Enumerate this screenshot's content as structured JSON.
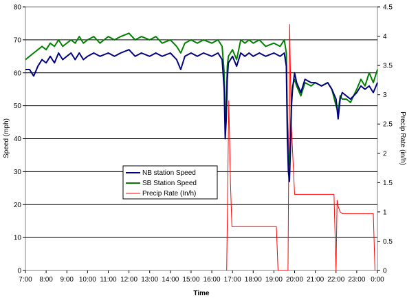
{
  "chart_data": {
    "type": "line",
    "title": "",
    "xlabel": "Time",
    "ylabel": "Speed (mph)",
    "y2label": "Precip Rate (in/h)",
    "ylim": [
      0,
      80
    ],
    "y2lim": [
      0,
      4.5
    ],
    "yticks": [
      0,
      10,
      20,
      30,
      40,
      50,
      60,
      70,
      80
    ],
    "y2ticks": [
      "0",
      "0.5",
      "1",
      "1.5",
      "2",
      "2.5",
      "3",
      "3.5",
      "4",
      "4.5"
    ],
    "xlim": [
      7,
      24
    ],
    "xtick_labels": [
      "7:00",
      "8:00",
      "9:00",
      "10:00",
      "11:00",
      "12:00",
      "13:00",
      "14:00",
      "15:00",
      "16:00",
      "17:00",
      "18:00",
      "19:00",
      "20:00",
      "21:00",
      "22:00",
      "23:00",
      "0:00"
    ],
    "grid": "horizontal",
    "legend_position": "left-center",
    "colors": {
      "nb": "#000080",
      "sb": "#008000",
      "precip": "#ff0000"
    },
    "series": [
      {
        "name": "NB station Speed",
        "axis": "left",
        "x": [
          7.0,
          7.2,
          7.4,
          7.6,
          7.8,
          8.0,
          8.2,
          8.4,
          8.6,
          8.8,
          9.0,
          9.2,
          9.4,
          9.6,
          9.8,
          10.0,
          10.3,
          10.6,
          11.0,
          11.3,
          11.6,
          12.0,
          12.3,
          12.6,
          13.0,
          13.3,
          13.6,
          14.0,
          14.3,
          14.5,
          14.7,
          15.0,
          15.3,
          15.6,
          16.0,
          16.3,
          16.5,
          16.6,
          16.65,
          16.7,
          16.75,
          16.8,
          16.9,
          17.0,
          17.2,
          17.4,
          17.6,
          17.8,
          18.0,
          18.3,
          18.6,
          19.0,
          19.3,
          19.5,
          19.6,
          19.65,
          19.7,
          19.75,
          19.8,
          19.85,
          19.9,
          20.0,
          20.1,
          20.3,
          20.5,
          20.8,
          21.0,
          21.3,
          21.6,
          21.8,
          22.0,
          22.1,
          22.2,
          22.3,
          22.5,
          22.7,
          23.0,
          23.2,
          23.4,
          23.6,
          23.8,
          24.0
        ],
        "values": [
          61,
          61,
          59,
          62,
          64,
          63,
          65,
          63,
          66,
          64,
          65,
          66,
          64,
          66,
          64,
          65,
          66,
          65,
          66,
          65,
          66,
          67,
          65,
          66,
          65,
          66,
          65,
          66,
          64,
          61,
          65,
          66,
          65,
          66,
          65,
          66,
          64,
          55,
          40,
          46,
          58,
          63,
          64,
          65,
          62,
          66,
          65,
          66,
          65,
          66,
          65,
          66,
          65,
          66,
          62,
          40,
          30,
          27,
          37,
          50,
          55,
          60,
          57,
          54,
          58,
          57,
          57,
          56,
          57,
          55,
          52,
          46,
          52,
          54,
          53,
          52,
          54,
          56,
          55,
          56,
          54,
          57
        ]
      },
      {
        "name": "SB Station Speed",
        "axis": "left",
        "x": [
          7.0,
          7.2,
          7.4,
          7.6,
          7.8,
          8.0,
          8.2,
          8.4,
          8.6,
          8.8,
          9.0,
          9.2,
          9.4,
          9.6,
          9.8,
          10.0,
          10.3,
          10.6,
          11.0,
          11.3,
          11.6,
          12.0,
          12.3,
          12.6,
          13.0,
          13.3,
          13.6,
          14.0,
          14.3,
          14.5,
          14.7,
          15.0,
          15.3,
          15.6,
          16.0,
          16.3,
          16.5,
          16.6,
          16.65,
          16.7,
          16.75,
          16.8,
          16.9,
          17.0,
          17.2,
          17.4,
          17.6,
          17.8,
          18.0,
          18.3,
          18.6,
          19.0,
          19.3,
          19.5,
          19.6,
          19.65,
          19.7,
          19.75,
          19.8,
          19.85,
          19.9,
          20.0,
          20.1,
          20.3,
          20.5,
          20.8,
          21.0,
          21.3,
          21.6,
          21.8,
          22.0,
          22.1,
          22.2,
          22.3,
          22.5,
          22.7,
          23.0,
          23.2,
          23.4,
          23.6,
          23.8,
          24.0
        ],
        "values": [
          64,
          65,
          66,
          67,
          68,
          67,
          69,
          68,
          70,
          68,
          69,
          70,
          69,
          71,
          69,
          70,
          71,
          69,
          71,
          70,
          71,
          72,
          70,
          71,
          70,
          71,
          69,
          70,
          68,
          66,
          69,
          70,
          69,
          70,
          69,
          70,
          68,
          60,
          44,
          50,
          62,
          65,
          66,
          67,
          64,
          70,
          69,
          70,
          69,
          70,
          68,
          69,
          68,
          70,
          66,
          45,
          35,
          32,
          40,
          52,
          56,
          58,
          56,
          53,
          57,
          56,
          57,
          56,
          57,
          55,
          50,
          48,
          53,
          52,
          52,
          51,
          55,
          58,
          56,
          60,
          57,
          61
        ]
      },
      {
        "name": "Precip Rate (In/h)",
        "axis": "right",
        "x": [
          16.72,
          16.82,
          16.9,
          16.97,
          17.1,
          19.12,
          19.2,
          19.68,
          19.76,
          19.84,
          20.0,
          20.2,
          21.9,
          22.0,
          22.05,
          22.1,
          22.2,
          22.3,
          22.5,
          23.7,
          23.8,
          23.88
        ],
        "values": [
          0,
          2.9,
          1.5,
          0.75,
          0.75,
          0.75,
          0,
          0,
          4.2,
          2.5,
          1.3,
          1.3,
          1.3,
          0,
          1.2,
          1.1,
          1.0,
          0.97,
          0.97,
          0.97,
          0.97,
          0
        ]
      }
    ]
  }
}
